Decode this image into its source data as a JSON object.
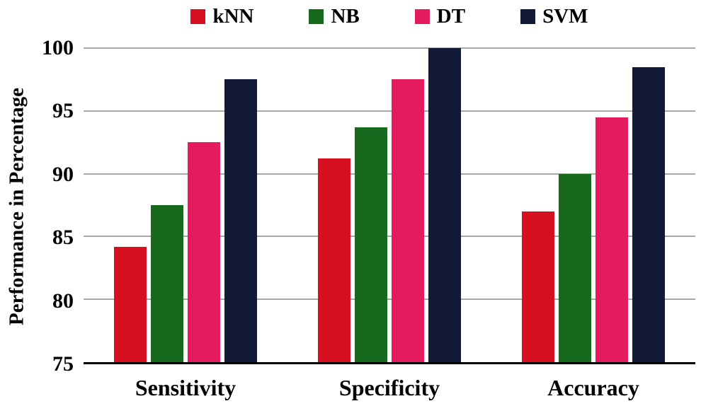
{
  "chart_data": {
    "type": "bar",
    "title": "",
    "categories": [
      "Sensitivity",
      "Specificity",
      "Accuracy"
    ],
    "series": [
      {
        "name": "kNN",
        "color": "#d6101e",
        "values": [
          84.2,
          91.2,
          87.0
        ]
      },
      {
        "name": "NB",
        "color": "#17691d",
        "values": [
          87.5,
          93.7,
          90.0
        ]
      },
      {
        "name": "DT",
        "color": "#e41b61",
        "values": [
          92.5,
          97.5,
          94.5
        ]
      },
      {
        "name": "SVM",
        "color": "#121a38",
        "values": [
          97.5,
          100.0,
          98.5
        ]
      }
    ],
    "xlabel": "",
    "ylabel": "Performance in Percentage",
    "ylim": [
      75,
      100
    ],
    "yticks": [
      75,
      80,
      85,
      90,
      95,
      100
    ],
    "grid": true,
    "gridline_color": "#a9a9a9",
    "legend_position": "top"
  }
}
